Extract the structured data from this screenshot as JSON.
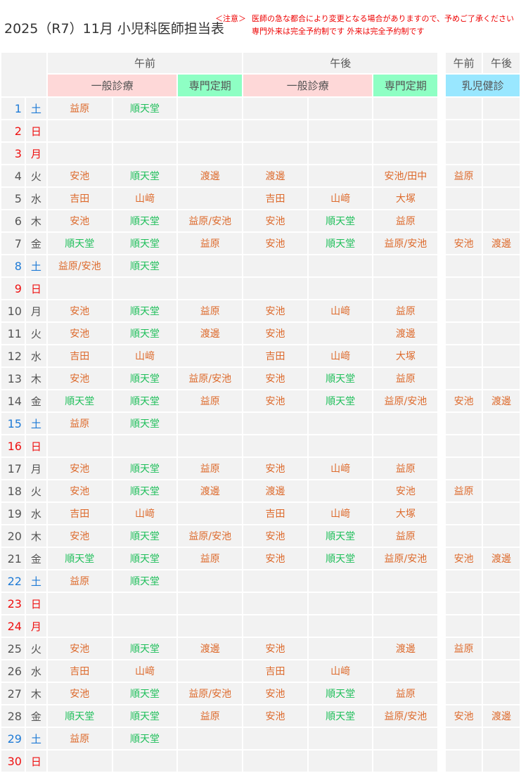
{
  "title": "2025（R7）11月 小児科医師担当表",
  "notice": {
    "label": "＜注意＞",
    "line1": "医師の急な都合により変更となる場合がありますので、予めご了承ください",
    "line2": "専門外来は完全予約制です 外来は完全予約制です"
  },
  "header": {
    "am": "午前",
    "pm": "午後",
    "am2": "午前",
    "pm2": "午後",
    "general": "一般診療",
    "special": "専門定期",
    "general2": "一般診療",
    "special2": "専門定期",
    "infant": "乳児健診"
  },
  "colors": {
    "header_pink": "#fed8d8",
    "header_green": "#8effc4",
    "header_blue": "#99e7ff",
    "name_orange": "#dd6a2c",
    "name_green": "#1fbf5a",
    "saturday": "#1f7bd6",
    "sunday_holiday": "#ee1111",
    "weekday": "#555555"
  },
  "rows": [
    {
      "day": "1",
      "wd": "土",
      "type": "sat",
      "cells": [
        "益原",
        "順天堂",
        "",
        "",
        "",
        "",
        "",
        ""
      ]
    },
    {
      "day": "2",
      "wd": "日",
      "type": "sun",
      "cells": [
        "",
        "",
        "",
        "",
        "",
        "",
        "",
        ""
      ]
    },
    {
      "day": "3",
      "wd": "月",
      "type": "sun",
      "cells": [
        "",
        "",
        "",
        "",
        "",
        "",
        "",
        ""
      ]
    },
    {
      "day": "4",
      "wd": "火",
      "type": "wd",
      "cells": [
        "安池",
        "順天堂",
        "渡邊",
        "渡邊",
        "",
        "安池/田中",
        "益原",
        ""
      ]
    },
    {
      "day": "5",
      "wd": "水",
      "type": "wd",
      "cells": [
        "吉田",
        "山﨑",
        "",
        "吉田",
        "山﨑",
        "大塚",
        "",
        ""
      ]
    },
    {
      "day": "6",
      "wd": "木",
      "type": "wd",
      "cells": [
        "安池",
        "順天堂",
        "益原/安池",
        "安池",
        "順天堂",
        "益原",
        "",
        ""
      ]
    },
    {
      "day": "7",
      "wd": "金",
      "type": "wd",
      "cells": [
        "順天堂",
        "順天堂",
        "益原",
        "安池",
        "順天堂",
        "益原/安池",
        "安池",
        "渡邊"
      ]
    },
    {
      "day": "8",
      "wd": "土",
      "type": "sat",
      "cells": [
        "益原/安池",
        "順天堂",
        "",
        "",
        "",
        "",
        "",
        ""
      ]
    },
    {
      "day": "9",
      "wd": "日",
      "type": "sun",
      "cells": [
        "",
        "",
        "",
        "",
        "",
        "",
        "",
        ""
      ]
    },
    {
      "day": "10",
      "wd": "月",
      "type": "wd",
      "cells": [
        "安池",
        "順天堂",
        "益原",
        "安池",
        "山﨑",
        "益原",
        "",
        ""
      ]
    },
    {
      "day": "11",
      "wd": "火",
      "type": "wd",
      "cells": [
        "安池",
        "順天堂",
        "渡邊",
        "安池",
        "",
        "渡邊",
        "",
        ""
      ]
    },
    {
      "day": "12",
      "wd": "水",
      "type": "wd",
      "cells": [
        "吉田",
        "山﨑",
        "",
        "吉田",
        "山﨑",
        "大塚",
        "",
        ""
      ]
    },
    {
      "day": "13",
      "wd": "木",
      "type": "wd",
      "cells": [
        "安池",
        "順天堂",
        "益原/安池",
        "安池",
        "順天堂",
        "益原",
        "",
        ""
      ]
    },
    {
      "day": "14",
      "wd": "金",
      "type": "wd",
      "cells": [
        "順天堂",
        "順天堂",
        "益原",
        "安池",
        "順天堂",
        "益原/安池",
        "安池",
        "渡邊"
      ]
    },
    {
      "day": "15",
      "wd": "土",
      "type": "sat",
      "cells": [
        "益原",
        "順天堂",
        "",
        "",
        "",
        "",
        "",
        ""
      ]
    },
    {
      "day": "16",
      "wd": "日",
      "type": "sun",
      "cells": [
        "",
        "",
        "",
        "",
        "",
        "",
        "",
        ""
      ]
    },
    {
      "day": "17",
      "wd": "月",
      "type": "wd",
      "cells": [
        "安池",
        "順天堂",
        "益原",
        "安池",
        "山﨑",
        "益原",
        "",
        ""
      ]
    },
    {
      "day": "18",
      "wd": "火",
      "type": "wd",
      "cells": [
        "安池",
        "順天堂",
        "渡邊",
        "渡邊",
        "",
        "安池",
        "益原",
        ""
      ]
    },
    {
      "day": "19",
      "wd": "水",
      "type": "wd",
      "cells": [
        "吉田",
        "山﨑",
        "",
        "吉田",
        "山﨑",
        "大塚",
        "",
        ""
      ]
    },
    {
      "day": "20",
      "wd": "木",
      "type": "wd",
      "cells": [
        "安池",
        "順天堂",
        "益原/安池",
        "安池",
        "順天堂",
        "益原",
        "",
        ""
      ]
    },
    {
      "day": "21",
      "wd": "金",
      "type": "wd",
      "cells": [
        "順天堂",
        "順天堂",
        "益原",
        "安池",
        "順天堂",
        "益原/安池",
        "安池",
        "渡邊"
      ]
    },
    {
      "day": "22",
      "wd": "土",
      "type": "sat",
      "cells": [
        "益原",
        "順天堂",
        "",
        "",
        "",
        "",
        "",
        ""
      ]
    },
    {
      "day": "23",
      "wd": "日",
      "type": "sun",
      "cells": [
        "",
        "",
        "",
        "",
        "",
        "",
        "",
        ""
      ]
    },
    {
      "day": "24",
      "wd": "月",
      "type": "sun",
      "cells": [
        "",
        "",
        "",
        "",
        "",
        "",
        "",
        ""
      ]
    },
    {
      "day": "25",
      "wd": "火",
      "type": "wd",
      "cells": [
        "安池",
        "順天堂",
        "渡邊",
        "安池",
        "",
        "渡邊",
        "益原",
        ""
      ]
    },
    {
      "day": "26",
      "wd": "水",
      "type": "wd",
      "cells": [
        "吉田",
        "山﨑",
        "",
        "吉田",
        "山﨑",
        "",
        "",
        ""
      ]
    },
    {
      "day": "27",
      "wd": "木",
      "type": "wd",
      "cells": [
        "安池",
        "順天堂",
        "益原/安池",
        "安池",
        "順天堂",
        "益原",
        "",
        ""
      ]
    },
    {
      "day": "28",
      "wd": "金",
      "type": "wd",
      "cells": [
        "順天堂",
        "順天堂",
        "益原",
        "安池",
        "順天堂",
        "益原/安池",
        "安池",
        "渡邊"
      ]
    },
    {
      "day": "29",
      "wd": "土",
      "type": "sat",
      "cells": [
        "益原",
        "順天堂",
        "",
        "",
        "",
        "",
        "",
        ""
      ]
    },
    {
      "day": "30",
      "wd": "日",
      "type": "sun",
      "cells": [
        "",
        "",
        "",
        "",
        "",
        "",
        "",
        ""
      ]
    }
  ]
}
